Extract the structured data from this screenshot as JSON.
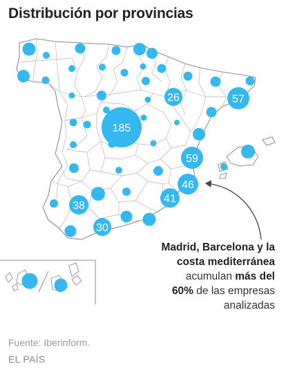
{
  "title": "Distribución por provincias",
  "colors": {
    "bubble": "#35b8ef",
    "province_stroke": "#c4c4c4",
    "outline": "#8c8c8c",
    "arrow": "#444444",
    "label_text": "#ffffff"
  },
  "bubbles": {
    "madrid": "185",
    "catalonia": "57",
    "zaragoza": "26",
    "valencia": "59",
    "alicante": "46",
    "murcia": "41",
    "sevilla": "38",
    "cadiz": "30"
  },
  "annotation": {
    "line1": "Madrid, Barcelona y la",
    "line2": "costa mediterránea",
    "line3_normal": "acumulan ",
    "line3_bold": "más del",
    "line4_bold": "60%",
    "line4_normal": " de las empresas",
    "line5": "analizadas"
  },
  "footer": {
    "source": "Fuente: Iberinform.",
    "credit": "EL PAÍS"
  }
}
